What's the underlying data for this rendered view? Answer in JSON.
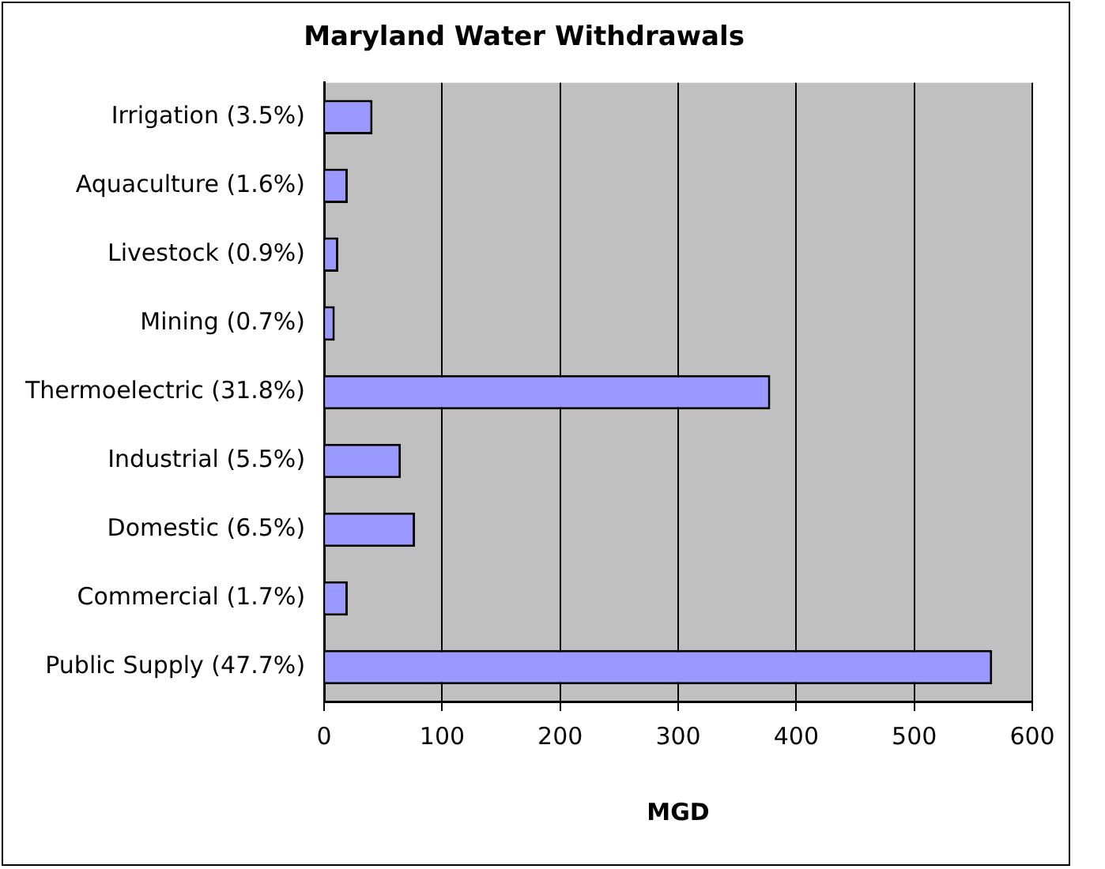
{
  "chart_data": {
    "type": "bar",
    "orientation": "horizontal",
    "title": "Maryland Water Withdrawals",
    "xlabel": "MGD",
    "categories": [
      "Irrigation (3.5%)",
      "Aquaculture (1.6%)",
      "Livestock (0.9%)",
      "Mining (0.7%)",
      "Thermoelectric (31.8%)",
      "Industrial (5.5%)",
      "Domestic (6.5%)",
      "Commercial (1.7%)",
      "Public Supply (47.7%)"
    ],
    "values": [
      41,
      20,
      12,
      9,
      378,
      65,
      77,
      20,
      566
    ],
    "color": "#9999ff",
    "xlim": [
      0,
      600
    ],
    "xticks": [
      0,
      100,
      200,
      300,
      400,
      500,
      600
    ],
    "grid": "x",
    "legend": false
  }
}
